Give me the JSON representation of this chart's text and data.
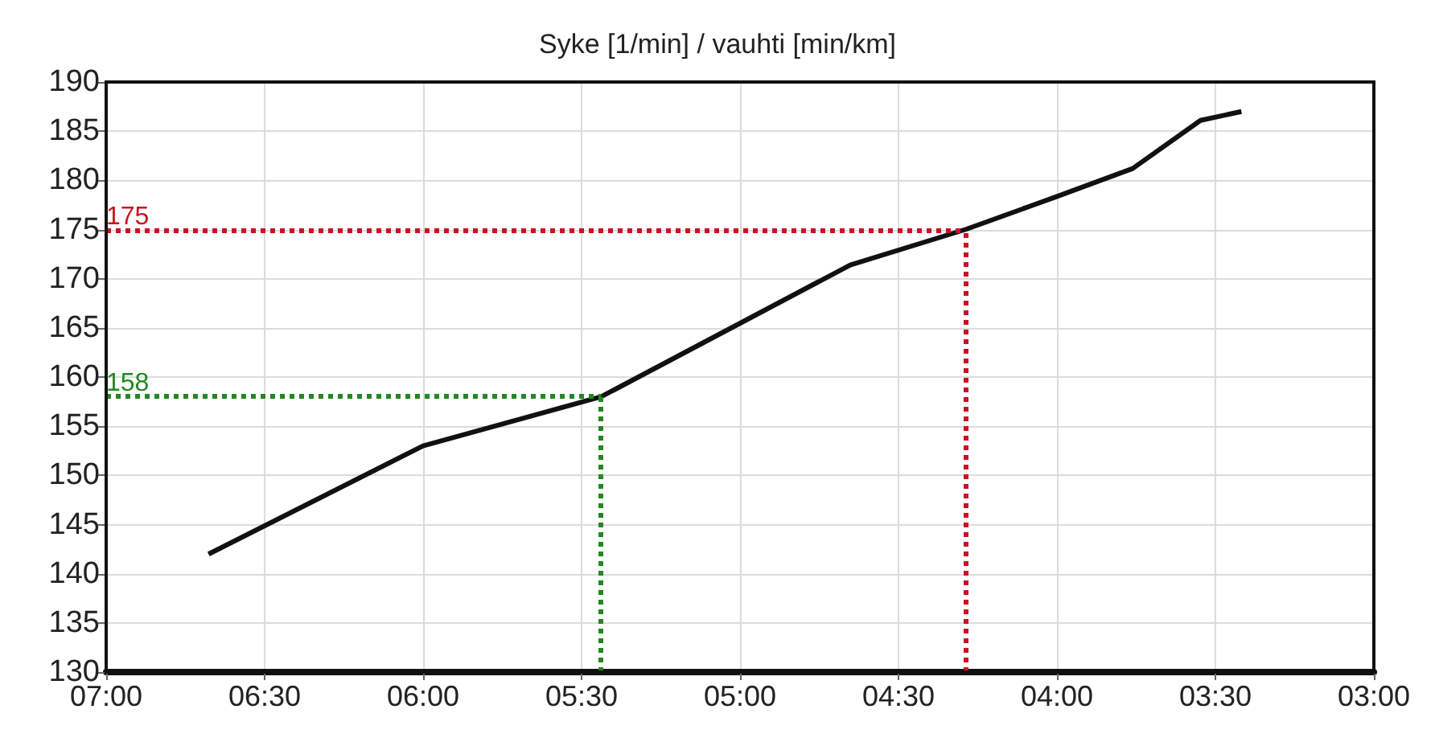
{
  "chart_data": {
    "type": "line",
    "title": "Syke [1/min] / vauhti [min/km]",
    "x": [
      6.677,
      6.0,
      5.438,
      4.652,
      4.289,
      4.005,
      3.761,
      3.547,
      3.418
    ],
    "series": [
      {
        "color": "#111111",
        "values": [
          142,
          153,
          158,
          171.4,
          175,
          178.3,
          181.2,
          186.1,
          187
        ]
      }
    ],
    "xlim": [
      7,
      3
    ],
    "xticks": [
      {
        "value": 7,
        "label": "07:00"
      },
      {
        "value": 6.5,
        "label": "06:30"
      },
      {
        "value": 6,
        "label": "06:00"
      },
      {
        "value": 5.5,
        "label": "05:30"
      },
      {
        "value": 5,
        "label": "05:00"
      },
      {
        "value": 4.5,
        "label": "04:30"
      },
      {
        "value": 4,
        "label": "04:00"
      },
      {
        "value": 3.5,
        "label": "03:30"
      },
      {
        "value": 3,
        "label": "03:00"
      }
    ],
    "ylim": [
      130,
      190
    ],
    "yticks": [
      130,
      135,
      140,
      145,
      150,
      155,
      160,
      165,
      170,
      175,
      180,
      185,
      190
    ],
    "ref_lines": [
      {
        "axis": "y",
        "value": 175,
        "label": "175",
        "color": "#cc1122",
        "line_style": "dotted"
      },
      {
        "axis": "x",
        "value": 4.289,
        "label": null,
        "color": "#cc1122",
        "line_style": "dotted"
      },
      {
        "axis": "y",
        "value": 158,
        "label": "158",
        "color": "#228822",
        "line_style": "dotted"
      },
      {
        "axis": "x",
        "value": 5.438,
        "label": null,
        "color": "#228822",
        "line_style": "dotted"
      }
    ],
    "grid": true,
    "marker": "none",
    "line_style": "solid"
  }
}
